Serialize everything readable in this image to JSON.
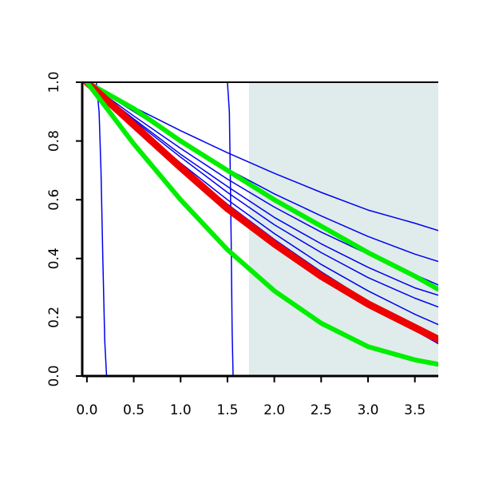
{
  "chart_data": {
    "type": "line",
    "title": "",
    "xlabel": "",
    "ylabel": "",
    "xlim": [
      -0.05,
      3.75
    ],
    "ylim": [
      0.0,
      1.0
    ],
    "x_ticks": [
      0.0,
      0.5,
      1.0,
      1.5,
      2.0,
      2.5,
      3.0,
      3.5
    ],
    "x_tick_labels": [
      "0.0",
      "0.5",
      "1.0",
      "1.5",
      "2.0",
      "2.5",
      "3.0",
      "3.5"
    ],
    "y_ticks": [
      0.0,
      0.2,
      0.4,
      0.6,
      0.8,
      1.0
    ],
    "y_tick_labels": [
      "0.0",
      "0.2",
      "0.4",
      "0.6",
      "0.8",
      "1.0"
    ],
    "grid": false,
    "legend": "none",
    "shaded_region": {
      "x_from": 1.73,
      "x_to": 3.75,
      "color": "#dfeceb"
    },
    "series": [
      {
        "color": "#0000ee",
        "width": 1.5,
        "x": [
          0,
          0.1,
          0.13,
          0.15,
          0.17,
          0.19,
          0.21,
          3.75
        ],
        "y": [
          1,
          1,
          0.9,
          0.7,
          0.4,
          0.12,
          0,
          0
        ]
      },
      {
        "color": "#0000ee",
        "width": 1.5,
        "x": [
          0,
          1.5,
          1.52,
          1.53,
          1.54,
          1.55,
          1.56,
          3.75
        ],
        "y": [
          1,
          1,
          0.9,
          0.7,
          0.45,
          0.15,
          0,
          0
        ]
      },
      {
        "color": "#0000ee",
        "width": 1.5,
        "x": [
          0,
          0.5,
          1.0,
          1.5,
          2.0,
          2.5,
          3.0,
          3.5,
          3.75
        ],
        "y": [
          1,
          0.915,
          0.835,
          0.76,
          0.69,
          0.625,
          0.565,
          0.52,
          0.495
        ]
      },
      {
        "color": "#0000ee",
        "width": 1.5,
        "x": [
          0,
          0.5,
          1.0,
          1.5,
          2.0,
          2.5,
          3.0,
          3.5,
          3.75
        ],
        "y": [
          1,
          0.9,
          0.8,
          0.705,
          0.62,
          0.545,
          0.475,
          0.415,
          0.39
        ]
      },
      {
        "color": "#0000ee",
        "width": 1.5,
        "x": [
          0,
          0.5,
          1.0,
          1.5,
          2.0,
          2.5,
          3.0,
          3.5,
          3.75
        ],
        "y": [
          1,
          0.885,
          0.775,
          0.67,
          0.575,
          0.49,
          0.415,
          0.345,
          0.31
        ]
      },
      {
        "color": "#0000ee",
        "width": 1.5,
        "x": [
          0,
          0.5,
          1.0,
          1.5,
          2.0,
          2.5,
          3.0,
          3.5,
          3.75
        ],
        "y": [
          1,
          0.875,
          0.755,
          0.645,
          0.54,
          0.45,
          0.37,
          0.3,
          0.275
        ]
      },
      {
        "color": "#0000ee",
        "width": 1.5,
        "x": [
          0,
          0.5,
          1.0,
          1.5,
          2.0,
          2.5,
          3.0,
          3.5,
          3.75
        ],
        "y": [
          1,
          0.87,
          0.745,
          0.625,
          0.515,
          0.42,
          0.335,
          0.265,
          0.235
        ]
      },
      {
        "color": "#0000ee",
        "width": 1.5,
        "x": [
          0,
          0.5,
          1.0,
          1.5,
          2.0,
          2.5,
          3.0,
          3.5,
          3.75
        ],
        "y": [
          1,
          0.86,
          0.725,
          0.6,
          0.485,
          0.38,
          0.29,
          0.21,
          0.175
        ]
      },
      {
        "color": "#0000ee",
        "width": 1.5,
        "x": [
          0,
          0.5,
          1.0,
          1.5,
          2.0,
          2.5,
          3.0,
          3.5,
          3.75
        ],
        "y": [
          1,
          0.855,
          0.715,
          0.585,
          0.465,
          0.355,
          0.255,
          0.17,
          0.135
        ]
      },
      {
        "color": "#0000ee",
        "width": 1.5,
        "x": [
          0,
          0.5,
          1.0,
          1.5,
          2.0,
          2.5,
          3.0,
          3.5,
          3.75
        ],
        "y": [
          1,
          0.85,
          0.7,
          0.565,
          0.44,
          0.33,
          0.235,
          0.155,
          0.11
        ]
      },
      {
        "color": "#00ee00",
        "width": 6,
        "x": [
          0,
          0.5,
          1.0,
          1.5,
          2.0,
          2.5,
          3.0,
          3.5,
          3.75
        ],
        "y": [
          1,
          0.91,
          0.8,
          0.7,
          0.6,
          0.51,
          0.42,
          0.34,
          0.295
        ]
      },
      {
        "color": "#ee0000",
        "width": 9,
        "x": [
          0,
          0.5,
          1.0,
          1.5,
          2.0,
          2.5,
          3.0,
          3.5,
          3.75
        ],
        "y": [
          1,
          0.855,
          0.71,
          0.57,
          0.45,
          0.34,
          0.245,
          0.165,
          0.125
        ]
      },
      {
        "color": "#00ee00",
        "width": 6,
        "x": [
          0,
          0.5,
          1.0,
          1.5,
          2.0,
          2.5,
          3.0,
          3.5,
          3.75
        ],
        "y": [
          1,
          0.79,
          0.6,
          0.43,
          0.29,
          0.18,
          0.1,
          0.055,
          0.04
        ]
      }
    ]
  }
}
